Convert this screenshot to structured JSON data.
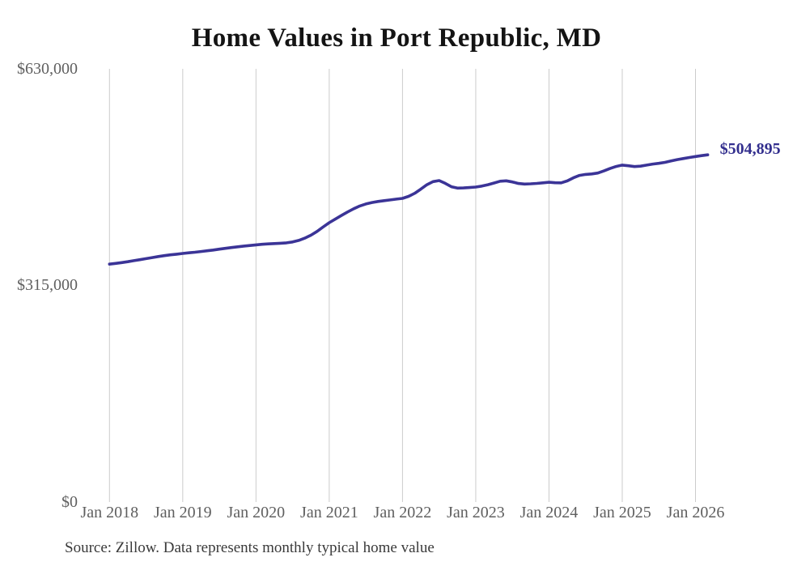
{
  "title": "Home Values in Port Republic, MD",
  "source_note": "Source: Zillow. Data represents monthly typical home value",
  "colors": {
    "line": "#3b3497",
    "end_label": "#332f8e",
    "grid": "#cccccc",
    "tick_text": "#5f5f5f",
    "title_text": "#141414",
    "source_text": "#3a3a3a",
    "background": "#ffffff"
  },
  "chart_data": {
    "type": "line",
    "title": "Home Values in Port Republic, MD",
    "xlabel": "",
    "ylabel": "",
    "x_start": "2018-01",
    "x_end": "2026-03",
    "x_interval": "month",
    "x_tick_labels": [
      "Jan 2018",
      "Jan 2019",
      "Jan 2020",
      "Jan 2021",
      "Jan 2022",
      "Jan 2023",
      "Jan 2024",
      "Jan 2025",
      "Jan 2026"
    ],
    "y_ticks": [
      {
        "label": "$0",
        "value": 0
      },
      {
        "label": "$315,000",
        "value": 315000
      },
      {
        "label": "$630,000",
        "value": 630000
      }
    ],
    "ylim": [
      0,
      630000
    ],
    "grid": "vertical-only",
    "legend": "none",
    "end_label": "$504,895",
    "end_value": 504895,
    "series": [
      {
        "name": "Monthly typical home value (USD)",
        "values": [
          346000,
          347000,
          348200,
          349500,
          351000,
          352500,
          354000,
          355500,
          357000,
          358300,
          359500,
          360500,
          361500,
          362400,
          363300,
          364300,
          365400,
          366500,
          367700,
          368900,
          370100,
          371200,
          372200,
          373100,
          374000,
          374800,
          375400,
          375900,
          376300,
          376900,
          378200,
          380500,
          383800,
          388000,
          393500,
          400000,
          406300,
          411500,
          416800,
          421800,
          426500,
          430500,
          433500,
          435600,
          437100,
          438300,
          439400,
          440500,
          441600,
          444500,
          449000,
          455000,
          461500,
          466000,
          467500,
          463500,
          458500,
          456500,
          456800,
          457400,
          458100,
          459500,
          461500,
          464000,
          466500,
          467200,
          465500,
          463200,
          462400,
          462800,
          463400,
          464200,
          465000,
          464300,
          464200,
          467000,
          471500,
          475000,
          476500,
          477100,
          478500,
          481500,
          485000,
          488000,
          490000,
          489000,
          487900,
          488500,
          490000,
          491500,
          492600,
          494000,
          496000,
          498000,
          499500,
          501000,
          502500,
          503800,
          504895
        ]
      }
    ]
  }
}
